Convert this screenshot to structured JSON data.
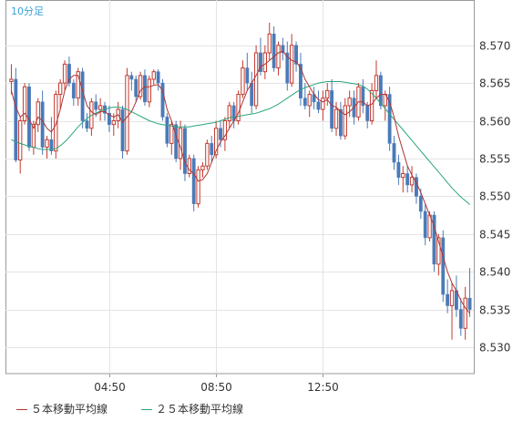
{
  "chart_data": {
    "type": "candlestick",
    "interval_label": "10分足",
    "x_tick_labels": [
      "04:50",
      "08:50",
      "12:50"
    ],
    "y_tick_labels": [
      "8.570",
      "8.565",
      "8.560",
      "8.555",
      "8.550",
      "8.545",
      "8.540",
      "8.535",
      "8.530"
    ],
    "y_range": [
      8.5265,
      8.576
    ],
    "grid": true,
    "up_color": "#c23a2e",
    "down_color": "#4a7ab8",
    "ma5_color": "#b03535",
    "ma25_color": "#2aa57a",
    "legend": [
      {
        "label": "５本移動平均線",
        "color": "#b03535"
      },
      {
        "label": "２５本移動平均線",
        "color": "#2aa57a"
      }
    ],
    "candles": [
      [
        8.5652,
        8.5675,
        8.5635,
        8.5655
      ],
      [
        8.5655,
        8.567,
        8.5545,
        8.5548
      ],
      [
        8.5548,
        8.5605,
        8.553,
        8.56
      ],
      [
        8.56,
        8.565,
        8.5595,
        8.5645
      ],
      [
        8.5645,
        8.565,
        8.556,
        8.5565
      ],
      [
        8.5565,
        8.56,
        8.5555,
        8.5595
      ],
      [
        8.5595,
        8.563,
        8.5585,
        8.5625
      ],
      [
        8.5625,
        8.564,
        8.5555,
        8.5565
      ],
      [
        8.5565,
        8.558,
        8.555,
        8.5575
      ],
      [
        8.5575,
        8.5605,
        8.5555,
        8.556
      ],
      [
        8.556,
        8.564,
        8.555,
        8.5635
      ],
      [
        8.5635,
        8.5655,
        8.5615,
        8.565
      ],
      [
        8.565,
        8.568,
        8.564,
        8.5675
      ],
      [
        8.5675,
        8.5685,
        8.5645,
        8.565
      ],
      [
        8.565,
        8.5655,
        8.562,
        8.563
      ],
      [
        8.563,
        8.567,
        8.562,
        8.5665
      ],
      [
        8.5665,
        8.567,
        8.559,
        8.56
      ],
      [
        8.56,
        8.561,
        8.5585,
        8.559
      ],
      [
        8.559,
        8.563,
        8.558,
        8.5625
      ],
      [
        8.5625,
        8.5635,
        8.5605,
        8.5615
      ],
      [
        8.5615,
        8.563,
        8.56,
        8.562
      ],
      [
        8.562,
        8.5625,
        8.56,
        8.561
      ],
      [
        8.561,
        8.562,
        8.5585,
        8.5595
      ],
      [
        8.5595,
        8.561,
        8.558,
        8.56
      ],
      [
        8.56,
        8.5625,
        8.559,
        8.5615
      ],
      [
        8.5615,
        8.562,
        8.555,
        8.556
      ],
      [
        8.556,
        8.567,
        8.5555,
        8.566
      ],
      [
        8.566,
        8.5665,
        8.564,
        8.5655
      ],
      [
        8.5655,
        8.566,
        8.5625,
        8.5632
      ],
      [
        8.5632,
        8.5665,
        8.5628,
        8.566
      ],
      [
        8.566,
        8.5668,
        8.562,
        8.5625
      ],
      [
        8.5625,
        8.566,
        8.5618,
        8.5655
      ],
      [
        8.5655,
        8.5668,
        8.5648,
        8.5665
      ],
      [
        8.5665,
        8.5668,
        8.564,
        8.565
      ],
      [
        8.565,
        8.5655,
        8.56,
        8.5605
      ],
      [
        8.5605,
        8.561,
        8.5565,
        8.557
      ],
      [
        8.557,
        8.56,
        8.5555,
        8.5595
      ],
      [
        8.5595,
        8.56,
        8.5545,
        8.555
      ],
      [
        8.555,
        8.56,
        8.5535,
        8.559
      ],
      [
        8.559,
        8.5595,
        8.552,
        8.553
      ],
      [
        8.553,
        8.5555,
        8.5525,
        8.555
      ],
      [
        8.555,
        8.5555,
        8.548,
        8.549
      ],
      [
        8.549,
        8.554,
        8.5485,
        8.5535
      ],
      [
        8.5535,
        8.5545,
        8.5525,
        8.554
      ],
      [
        8.554,
        8.5575,
        8.5535,
        8.557
      ],
      [
        8.557,
        8.558,
        8.5545,
        8.5555
      ],
      [
        8.5555,
        8.56,
        8.555,
        8.559
      ],
      [
        8.559,
        8.56,
        8.5565,
        8.5575
      ],
      [
        8.5575,
        8.5605,
        8.556,
        8.56
      ],
      [
        8.56,
        8.5625,
        8.559,
        8.562
      ],
      [
        8.562,
        8.5625,
        8.559,
        8.56
      ],
      [
        8.56,
        8.564,
        8.5595,
        8.5635
      ],
      [
        8.5635,
        8.568,
        8.563,
        8.567
      ],
      [
        8.567,
        8.569,
        8.564,
        8.565
      ],
      [
        8.565,
        8.5665,
        8.561,
        8.562
      ],
      [
        8.562,
        8.57,
        8.5615,
        8.569
      ],
      [
        8.569,
        8.571,
        8.566,
        8.5665
      ],
      [
        8.5665,
        8.57,
        8.5655,
        8.569
      ],
      [
        8.569,
        8.573,
        8.568,
        8.5715
      ],
      [
        8.5715,
        8.5725,
        8.5665,
        8.567
      ],
      [
        8.567,
        8.5705,
        8.566,
        8.57
      ],
      [
        8.57,
        8.571,
        8.568,
        8.569
      ],
      [
        8.569,
        8.5705,
        8.564,
        8.565
      ],
      [
        8.565,
        8.5715,
        8.5645,
        8.57
      ],
      [
        8.57,
        8.5705,
        8.5665,
        8.5675
      ],
      [
        8.5675,
        8.569,
        8.562,
        8.563
      ],
      [
        8.563,
        8.565,
        8.5615,
        8.562
      ],
      [
        8.562,
        8.564,
        8.5605,
        8.5635
      ],
      [
        8.5635,
        8.5645,
        8.5615,
        8.5625
      ],
      [
        8.5625,
        8.564,
        8.561,
        8.5615
      ],
      [
        8.5615,
        8.564,
        8.56,
        8.563
      ],
      [
        8.563,
        8.565,
        8.562,
        8.564
      ],
      [
        8.564,
        8.5655,
        8.5585,
        8.559
      ],
      [
        8.559,
        8.5625,
        8.558,
        8.5615
      ],
      [
        8.5615,
        8.5625,
        8.5575,
        8.558
      ],
      [
        8.558,
        8.563,
        8.5575,
        8.562
      ],
      [
        8.562,
        8.564,
        8.5605,
        8.563
      ],
      [
        8.563,
        8.564,
        8.5595,
        8.5605
      ],
      [
        8.5605,
        8.565,
        8.56,
        8.5645
      ],
      [
        8.5645,
        8.5655,
        8.561,
        8.562
      ],
      [
        8.562,
        8.5625,
        8.559,
        8.56
      ],
      [
        8.56,
        8.565,
        8.5595,
        8.564
      ],
      [
        8.564,
        8.568,
        8.563,
        8.566
      ],
      [
        8.566,
        8.5665,
        8.5615,
        8.562
      ],
      [
        8.562,
        8.564,
        8.56,
        8.5635
      ],
      [
        8.5635,
        8.5645,
        8.556,
        8.557
      ],
      [
        8.557,
        8.558,
        8.5535,
        8.5545
      ],
      [
        8.5545,
        8.5555,
        8.5515,
        8.5525
      ],
      [
        8.5525,
        8.554,
        8.5505,
        8.553
      ],
      [
        8.553,
        8.554,
        8.5505,
        8.5515
      ],
      [
        8.5515,
        8.554,
        8.5505,
        8.5525
      ],
      [
        8.5525,
        8.553,
        8.549,
        8.55
      ],
      [
        8.55,
        8.551,
        8.547,
        8.548
      ],
      [
        8.548,
        8.549,
        8.5435,
        8.5445
      ],
      [
        8.5445,
        8.548,
        8.544,
        8.5475
      ],
      [
        8.5475,
        8.548,
        8.54,
        8.541
      ],
      [
        8.541,
        8.545,
        8.5395,
        8.5445
      ],
      [
        8.5445,
        8.5455,
        8.536,
        8.537
      ],
      [
        8.537,
        8.539,
        8.5345,
        8.5355
      ],
      [
        8.5355,
        8.5385,
        8.531,
        8.5375
      ],
      [
        8.5375,
        8.5395,
        8.534,
        8.535
      ],
      [
        8.535,
        8.5365,
        8.5315,
        8.5325
      ],
      [
        8.5325,
        8.538,
        8.531,
        8.5365
      ],
      [
        8.5365,
        8.5405,
        8.534,
        8.535
      ]
    ],
    "ma5": [
      8.564,
      8.5618,
      8.5605,
      8.561,
      8.5602,
      8.559,
      8.5605,
      8.56,
      8.559,
      8.5585,
      8.5595,
      8.5615,
      8.564,
      8.5655,
      8.566,
      8.566,
      8.564,
      8.562,
      8.5612,
      8.5608,
      8.5612,
      8.5612,
      8.5608,
      8.5605,
      8.5608,
      8.5598,
      8.5605,
      8.5612,
      8.5625,
      8.564,
      8.5645,
      8.5645,
      8.5647,
      8.5648,
      8.564,
      8.5615,
      8.56,
      8.558,
      8.5565,
      8.5545,
      8.5535,
      8.553,
      8.552,
      8.5522,
      8.553,
      8.5545,
      8.556,
      8.5572,
      8.558,
      8.559,
      8.56,
      8.561,
      8.5625,
      8.564,
      8.565,
      8.566,
      8.5672,
      8.5675,
      8.568,
      8.5685,
      8.569,
      8.5692,
      8.5685,
      8.568,
      8.5678,
      8.567,
      8.5655,
      8.5645,
      8.5635,
      8.5628,
      8.5625,
      8.5628,
      8.562,
      8.5618,
      8.5612,
      8.5608,
      8.5612,
      8.5618,
      8.5625,
      8.5625,
      8.562,
      8.5622,
      8.563,
      8.5635,
      8.5635,
      8.5625,
      8.5605,
      8.558,
      8.556,
      8.554,
      8.5528,
      8.5518,
      8.5505,
      8.549,
      8.5475,
      8.546,
      8.544,
      8.542,
      8.54,
      8.5385,
      8.5375,
      8.5362,
      8.5352,
      8.5345
    ],
    "ma25": [
      8.5575,
      8.5572,
      8.557,
      8.5568,
      8.5566,
      8.5565,
      8.5563,
      8.5562,
      8.5562,
      8.5562,
      8.5563,
      8.5567,
      8.5572,
      8.5578,
      8.5585,
      8.5592,
      8.5598,
      8.5603,
      8.5607,
      8.561,
      8.5613,
      8.5615,
      8.5617,
      8.5618,
      8.5618,
      8.5617,
      8.5615,
      8.5612,
      8.5609,
      8.5606,
      8.5603,
      8.56,
      8.5598,
      8.5596,
      8.5595,
      8.5594,
      8.5593,
      8.5592,
      8.5592,
      8.5592,
      8.5592,
      8.5593,
      8.5594,
      8.5595,
      8.5596,
      8.5597,
      8.5598,
      8.56,
      8.5602,
      8.5604,
      8.5605,
      8.5606,
      8.5607,
      8.5608,
      8.5609,
      8.561,
      8.5612,
      8.5614,
      8.5616,
      8.5619,
      8.5622,
      8.5626,
      8.563,
      8.5634,
      8.5638,
      8.5641,
      8.5644,
      8.5646,
      8.5648,
      8.565,
      8.5651,
      8.5652,
      8.5652,
      8.5652,
      8.5652,
      8.5651,
      8.565,
      8.5649,
      8.5648,
      8.5646,
      8.5642,
      8.5636,
      8.563,
      8.5623,
      8.5616,
      8.5609,
      8.5602,
      8.5595,
      8.5588,
      8.5581,
      8.5574,
      8.5567,
      8.556,
      8.5553,
      8.5546,
      8.5539,
      8.5532,
      8.5525,
      8.5518,
      8.5511,
      8.5505,
      8.5499,
      8.5494,
      8.5489
    ]
  }
}
